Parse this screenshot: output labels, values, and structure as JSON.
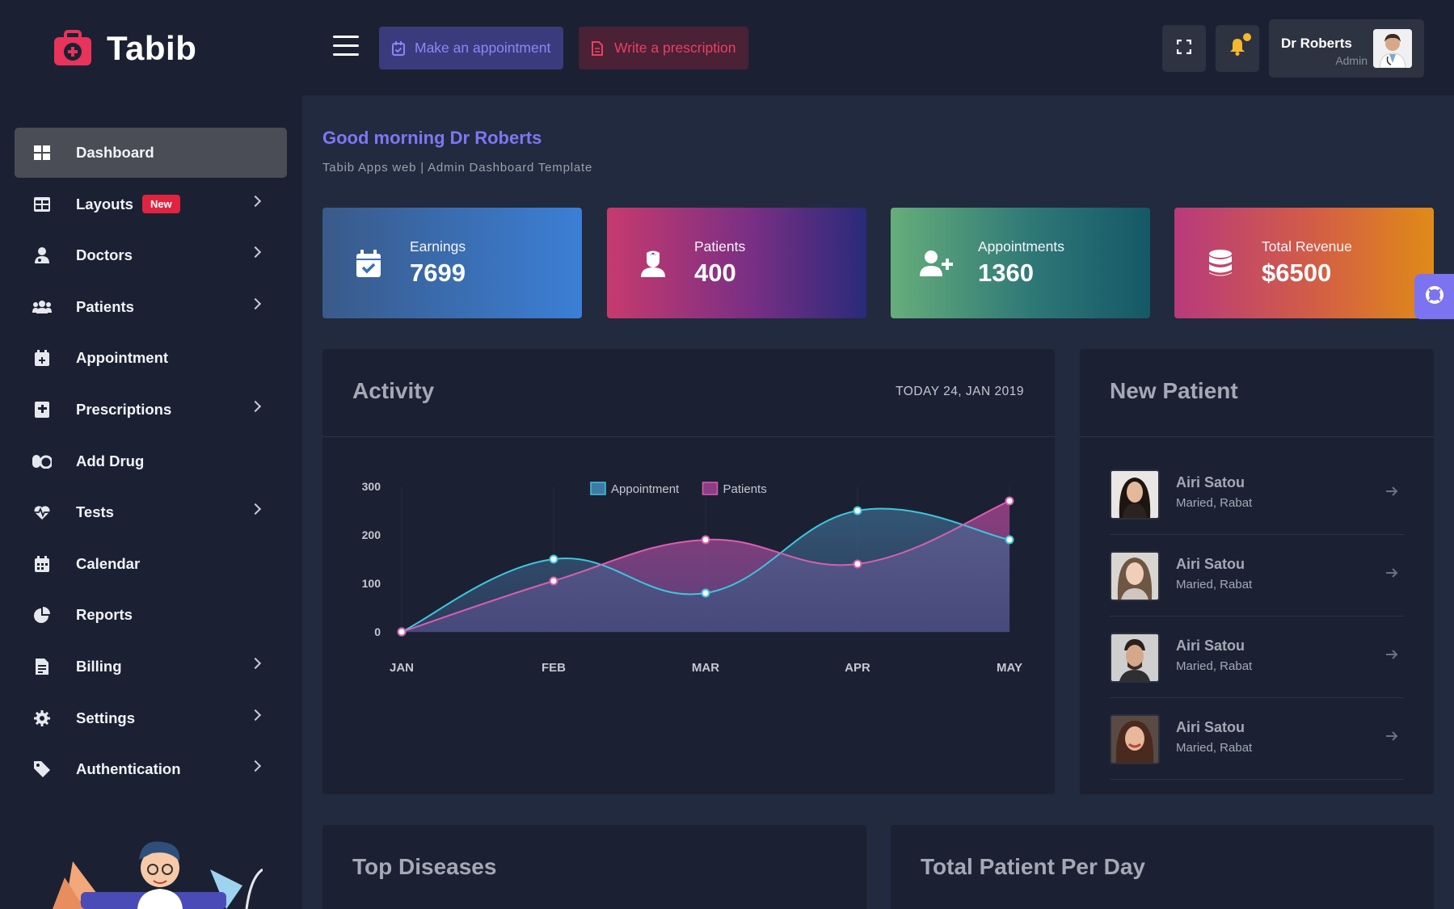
{
  "app": {
    "name": "Tabib"
  },
  "sidebar": {
    "items": [
      {
        "label": "Dashboard",
        "icon": "dashboard-icon",
        "active": true,
        "chevron": false
      },
      {
        "label": "Layouts",
        "icon": "layouts-icon",
        "badge": "New",
        "chevron": true
      },
      {
        "label": "Doctors",
        "icon": "doctor-icon",
        "chevron": true
      },
      {
        "label": "Patients",
        "icon": "patients-icon",
        "chevron": true
      },
      {
        "label": "Appointment",
        "icon": "calendar-plus-icon",
        "chevron": false
      },
      {
        "label": "Prescriptions",
        "icon": "prescription-icon",
        "chevron": true
      },
      {
        "label": "Add Drug",
        "icon": "pills-icon",
        "chevron": false
      },
      {
        "label": "Tests",
        "icon": "heartbeat-icon",
        "chevron": true
      },
      {
        "label": "Calendar",
        "icon": "calendar-icon",
        "chevron": false
      },
      {
        "label": "Reports",
        "icon": "pie-chart-icon",
        "chevron": false
      },
      {
        "label": "Billing",
        "icon": "invoice-icon",
        "chevron": true
      },
      {
        "label": "Settings",
        "icon": "gear-icon",
        "chevron": true
      },
      {
        "label": "Authentication",
        "icon": "tag-icon",
        "chevron": true
      }
    ]
  },
  "topbar": {
    "appointment_label": "Make an appointment",
    "prescription_label": "Write a prescription",
    "user_name": "Dr Roberts",
    "user_role": "Admin"
  },
  "greeting": {
    "title": "Good morning Dr Roberts",
    "subtitle": "Tabib Apps web | Admin Dashboard Template"
  },
  "stats": [
    {
      "label": "Earnings",
      "value": "7699",
      "icon": "calendar-check-icon"
    },
    {
      "label": "Patients",
      "value": "400",
      "icon": "nurse-icon"
    },
    {
      "label": "Appointments",
      "value": "1360",
      "icon": "user-plus-icon"
    },
    {
      "label": "Total Revenue",
      "value": "$6500",
      "icon": "database-icon"
    }
  ],
  "activity": {
    "title": "Activity",
    "date": "TODAY 24, JAN 2019"
  },
  "chart_data": {
    "type": "area",
    "categories": [
      "JAN",
      "FEB",
      "MAR",
      "APR",
      "MAY"
    ],
    "series": [
      {
        "name": "Appointment",
        "values": [
          0,
          150,
          80,
          250,
          190
        ],
        "color": "#3ec6dc"
      },
      {
        "name": "Patients",
        "values": [
          0,
          105,
          190,
          140,
          270
        ],
        "color": "#d85fb0"
      }
    ],
    "ylim": [
      0,
      300
    ],
    "yticks": [
      0,
      100,
      200,
      300
    ],
    "legend": "top",
    "grid": false
  },
  "new_patient": {
    "title": "New Patient",
    "rows": [
      {
        "name": "Airi Satou",
        "location": "Maried, Rabat"
      },
      {
        "name": "Airi Satou",
        "location": "Maried, Rabat"
      },
      {
        "name": "Airi Satou",
        "location": "Maried, Rabat"
      },
      {
        "name": "Airi Satou",
        "location": "Maried, Rabat"
      }
    ]
  },
  "bottom_panels": {
    "top_diseases": "Top Diseases",
    "patient_per_day": "Total Patient Per Day"
  },
  "colors": {
    "accent": "#7d77f2",
    "danger": "#e0243f",
    "sidebar_bg": "#1b2132",
    "page_bg": "#222a3f"
  }
}
